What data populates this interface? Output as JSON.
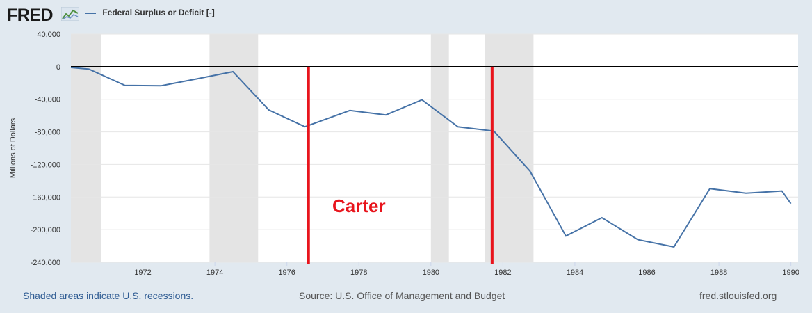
{
  "brand": {
    "logo_text": "FRED",
    "logo_icon": "chart-line-icon"
  },
  "legend": {
    "label": "Federal Surplus or Deficit [-]",
    "color": "#4572a7"
  },
  "footer": {
    "recessions_note": "Shaded areas indicate U.S. recessions.",
    "source": "Source: U.S. Office of Management and Budget",
    "site": "fred.stlouisfed.org"
  },
  "annotation": {
    "label": "Carter",
    "color": "#e8141c"
  },
  "chart_data": {
    "type": "line",
    "title": "",
    "xlabel": "",
    "ylabel": "Millions of Dollars",
    "xlim": [
      1970,
      1990.2
    ],
    "ylim": [
      -240000,
      40000
    ],
    "x_ticks": [
      "1972",
      "1974",
      "1976",
      "1978",
      "1980",
      "1982",
      "1984",
      "1986",
      "1988",
      "1990"
    ],
    "y_ticks": [
      "40,000",
      "0",
      "-40,000",
      "-80,000",
      "-120,000",
      "-160,000",
      "-200,000",
      "-240,000"
    ],
    "grid": "horizontal",
    "series": [
      {
        "name": "Federal Surplus or Deficit [-]",
        "x": [
          1970.0,
          1970.5,
          1971.5,
          1972.5,
          1973.5,
          1974.5,
          1975.5,
          1976.5,
          1977.75,
          1978.75,
          1979.75,
          1980.75,
          1981.75,
          1982.75,
          1983.75,
          1984.75,
          1985.75,
          1986.75,
          1987.75,
          1988.75,
          1989.75,
          1990.0
        ],
        "values": [
          -1000,
          -3000,
          -23000,
          -23400,
          -15000,
          -6100,
          -53200,
          -73700,
          -53700,
          -59200,
          -40700,
          -73800,
          -79000,
          -128000,
          -207800,
          -185400,
          -212300,
          -221200,
          -149700,
          -155200,
          -152600,
          -168000
        ]
      }
    ],
    "recessions": [
      [
        1970.0,
        1970.85
      ],
      [
        1973.85,
        1975.2
      ],
      [
        1980.0,
        1980.5
      ],
      [
        1981.5,
        1982.85
      ]
    ],
    "markers": [
      {
        "x": 1976.6,
        "label": "Carter"
      },
      {
        "x": 1981.7
      }
    ]
  }
}
